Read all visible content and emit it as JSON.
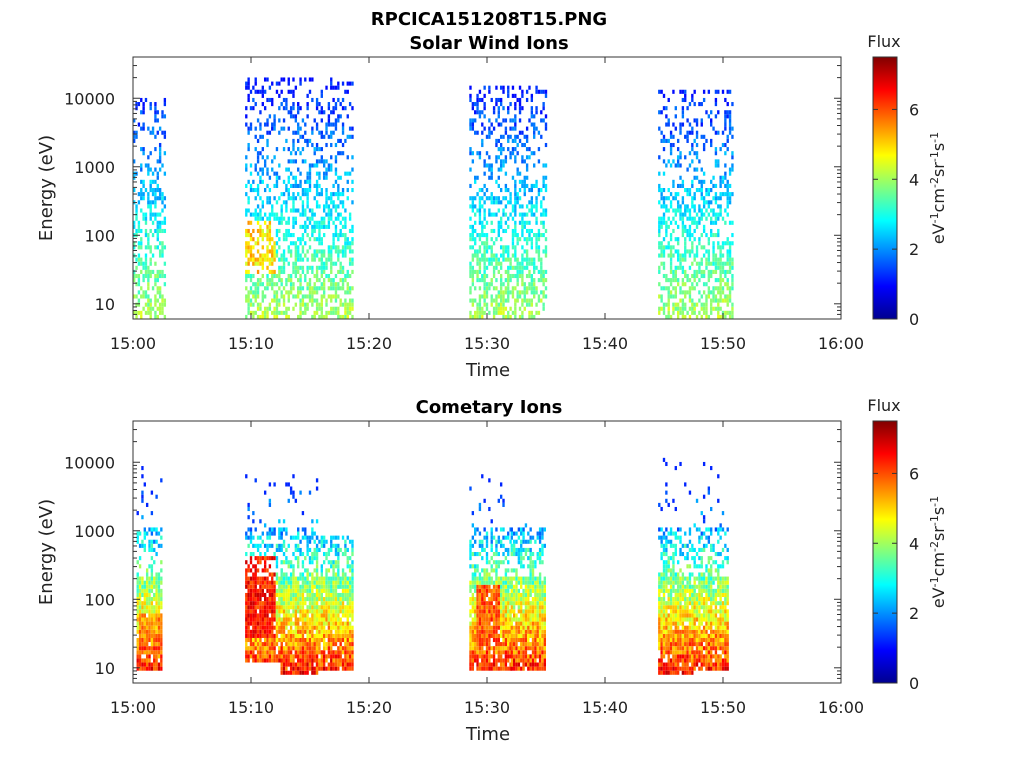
{
  "figure_title": "RPCICA151208T15.PNG",
  "colorbar": {
    "title": "Flux",
    "ticks": [
      0,
      2,
      4,
      6
    ],
    "range": [
      0,
      7.5
    ],
    "colormap": "jet"
  },
  "chart_data": [
    {
      "type": "heatmap",
      "title": "Solar Wind Ions",
      "xlabel": "Time",
      "ylabel": "Energy (eV)",
      "x_ticks": [
        "15:00",
        "15:10",
        "15:20",
        "15:30",
        "15:40",
        "15:50",
        "16:00"
      ],
      "xlim_minutes": [
        0,
        60
      ],
      "y_scale": "log",
      "y_ticks": [
        10,
        100,
        1000,
        10000
      ],
      "ylim": [
        6,
        40000
      ],
      "colorbar_label": "eV-1cm-2sr-1s-1",
      "bursts": [
        {
          "start_min": 0.0,
          "end_min": 2.7,
          "e_min": 6,
          "e_max": 10000
        },
        {
          "start_min": 9.5,
          "end_min": 18.5,
          "e_min": 6,
          "e_max": 20000
        },
        {
          "start_min": 28.5,
          "end_min": 35.0,
          "e_min": 6,
          "e_max": 15000
        },
        {
          "start_min": 44.5,
          "end_min": 50.8,
          "e_min": 6,
          "e_max": 12000
        }
      ],
      "peak_flux_regions": [
        {
          "start_min": 9.5,
          "end_min": 12.0,
          "e_min": 25,
          "e_max": 150,
          "flux": 5.5
        }
      ]
    },
    {
      "type": "heatmap",
      "title": "Cometary Ions",
      "xlabel": "Time",
      "ylabel": "Energy (eV)",
      "x_ticks": [
        "15:00",
        "15:10",
        "15:20",
        "15:30",
        "15:40",
        "15:50",
        "16:00"
      ],
      "xlim_minutes": [
        0,
        60
      ],
      "y_scale": "log",
      "y_ticks": [
        10,
        100,
        1000,
        10000
      ],
      "ylim": [
        6,
        40000
      ],
      "colorbar_label": "eV-1cm-2sr-1s-1",
      "bursts": [
        {
          "start_min": 0.3,
          "end_min": 2.5,
          "e_min": 10,
          "e_max": 8000
        },
        {
          "start_min": 9.5,
          "end_min": 12.5,
          "e_min": 12,
          "e_max": 6000
        },
        {
          "start_min": 12.5,
          "end_min": 15.5,
          "e_min": 8,
          "e_max": 6000
        },
        {
          "start_min": 15.5,
          "end_min": 18.5,
          "e_min": 10,
          "e_max": 800
        },
        {
          "start_min": 28.5,
          "end_min": 32.0,
          "e_min": 10,
          "e_max": 7000
        },
        {
          "start_min": 32.0,
          "end_min": 35.0,
          "e_min": 10,
          "e_max": 1200
        },
        {
          "start_min": 44.5,
          "end_min": 47.5,
          "e_min": 8,
          "e_max": 11000
        },
        {
          "start_min": 47.5,
          "end_min": 50.5,
          "e_min": 10,
          "e_max": 9000
        }
      ],
      "peak_flux_regions": [
        {
          "start_min": 0.5,
          "end_min": 2.3,
          "e_min": 15,
          "e_max": 60,
          "flux": 6.0
        },
        {
          "start_min": 9.5,
          "end_min": 12.0,
          "e_min": 25,
          "e_max": 400,
          "flux": 7.0
        },
        {
          "start_min": 29.0,
          "end_min": 31.0,
          "e_min": 20,
          "e_max": 150,
          "flux": 6.5
        }
      ]
    }
  ]
}
